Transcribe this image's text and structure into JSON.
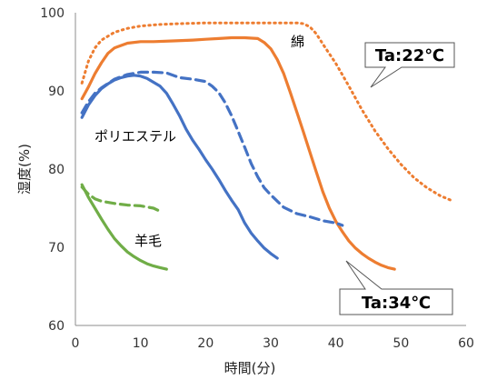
{
  "chart_data": {
    "type": "line",
    "xlabel": "時間(分)",
    "ylabel": "湿度(%)",
    "xlim": [
      0,
      60
    ],
    "ylim": [
      60,
      100
    ],
    "xticks": [
      "0",
      "10",
      "20",
      "30",
      "40",
      "50",
      "60"
    ],
    "yticks": [
      "60",
      "70",
      "80",
      "90",
      "100"
    ],
    "grid": false,
    "colors": {
      "cotton": "#ed7d31",
      "polyester": "#4472c4",
      "wool": "#70ad47"
    },
    "series": [
      {
        "name": "綿",
        "condition": "Ta:34℃",
        "style": "solid",
        "color": "#ed7d31",
        "x": [
          1,
          2,
          3,
          4,
          5,
          6,
          8,
          10,
          12,
          15,
          18,
          20,
          22,
          24,
          26,
          28,
          29,
          30,
          31,
          32,
          33,
          34,
          35,
          36,
          37,
          38,
          39,
          40,
          41,
          42,
          43,
          44,
          45,
          46,
          47,
          48,
          49
        ],
        "y": [
          89,
          90.5,
          92.2,
          93.6,
          94.8,
          95.5,
          96.1,
          96.3,
          96.3,
          96.4,
          96.5,
          96.6,
          96.7,
          96.8,
          96.8,
          96.7,
          96.2,
          95.4,
          94,
          92.2,
          89.8,
          87.3,
          84.8,
          82.2,
          79.6,
          77.1,
          75,
          73.3,
          72,
          70.8,
          69.9,
          69.2,
          68.6,
          68.1,
          67.7,
          67.4,
          67.2
        ]
      },
      {
        "name": "綿",
        "condition": "Ta:22℃",
        "style": "dotted",
        "color": "#ed7d31",
        "x": [
          1,
          2,
          3,
          4,
          6,
          8,
          10,
          13,
          16,
          20,
          25,
          30,
          34,
          35,
          36,
          37,
          38,
          40,
          42,
          44,
          46,
          48,
          50,
          52,
          54,
          56,
          58
        ],
        "y": [
          91,
          93.8,
          95.5,
          96.5,
          97.5,
          98,
          98.3,
          98.5,
          98.6,
          98.7,
          98.7,
          98.7,
          98.7,
          98.6,
          98.2,
          97.3,
          96,
          93.5,
          90.6,
          87.6,
          84.9,
          82.6,
          80.6,
          78.9,
          77.6,
          76.6,
          75.9
        ]
      },
      {
        "name": "ポリエステル",
        "condition": "Ta:34℃",
        "style": "solid",
        "color": "#4472c4",
        "x": [
          1,
          2,
          3,
          4,
          5,
          6,
          7,
          8,
          9,
          10,
          11,
          12,
          13,
          14,
          15,
          16,
          17,
          18,
          19,
          20,
          21,
          22,
          23,
          24,
          25,
          26,
          27,
          28,
          29,
          30,
          31
        ],
        "y": [
          86.6,
          88.2,
          89.4,
          90.3,
          90.9,
          91.4,
          91.7,
          91.9,
          92,
          91.9,
          91.6,
          91.1,
          90.6,
          89.7,
          88.3,
          86.8,
          85.1,
          83.7,
          82.5,
          81.2,
          80,
          78.7,
          77.3,
          76,
          74.8,
          73.1,
          71.8,
          70.8,
          69.9,
          69.2,
          68.6
        ]
      },
      {
        "name": "ポリエステル",
        "condition": "Ta:22℃",
        "style": "dashed",
        "color": "#4472c4",
        "x": [
          1,
          2,
          3,
          4,
          6,
          8,
          10,
          12,
          14,
          16,
          18,
          20,
          21,
          22,
          23,
          24,
          25,
          26,
          27,
          28,
          29,
          30,
          31,
          32,
          34,
          36,
          38,
          40,
          41
        ],
        "y": [
          87.2,
          88.6,
          89.7,
          90.4,
          91.5,
          92.1,
          92.4,
          92.4,
          92.3,
          91.7,
          91.5,
          91.2,
          90.6,
          89.8,
          88.5,
          86.8,
          84.8,
          82.8,
          80.7,
          79,
          77.6,
          76.7,
          75.9,
          75.1,
          74.3,
          73.9,
          73.4,
          73.1,
          72.8
        ]
      },
      {
        "name": "羊毛",
        "condition": "Ta:34℃",
        "style": "solid",
        "color": "#70ad47",
        "x": [
          1,
          2,
          3,
          4,
          5,
          6,
          7,
          8,
          9,
          10,
          11,
          12,
          13,
          14
        ],
        "y": [
          78,
          76.4,
          75,
          73.6,
          72.3,
          71.1,
          70.2,
          69.4,
          68.8,
          68.3,
          67.9,
          67.6,
          67.4,
          67.2
        ]
      },
      {
        "name": "羊毛",
        "condition": "Ta:22℃",
        "style": "dashed",
        "color": "#70ad47",
        "x": [
          1,
          2,
          3,
          4,
          6,
          8,
          10,
          12,
          13
        ],
        "y": [
          77.7,
          76.8,
          76.2,
          75.9,
          75.6,
          75.4,
          75.3,
          75,
          74.6
        ]
      }
    ],
    "series_labels": [
      {
        "text": "綿",
        "color": "#ed7d31"
      },
      {
        "text": "ポリエステル",
        "color": "#4472c4"
      },
      {
        "text": "羊毛",
        "color": "#70ad47"
      }
    ],
    "annotations": [
      {
        "text": "Ta:22℃"
      },
      {
        "text": "Ta:34℃"
      }
    ]
  }
}
